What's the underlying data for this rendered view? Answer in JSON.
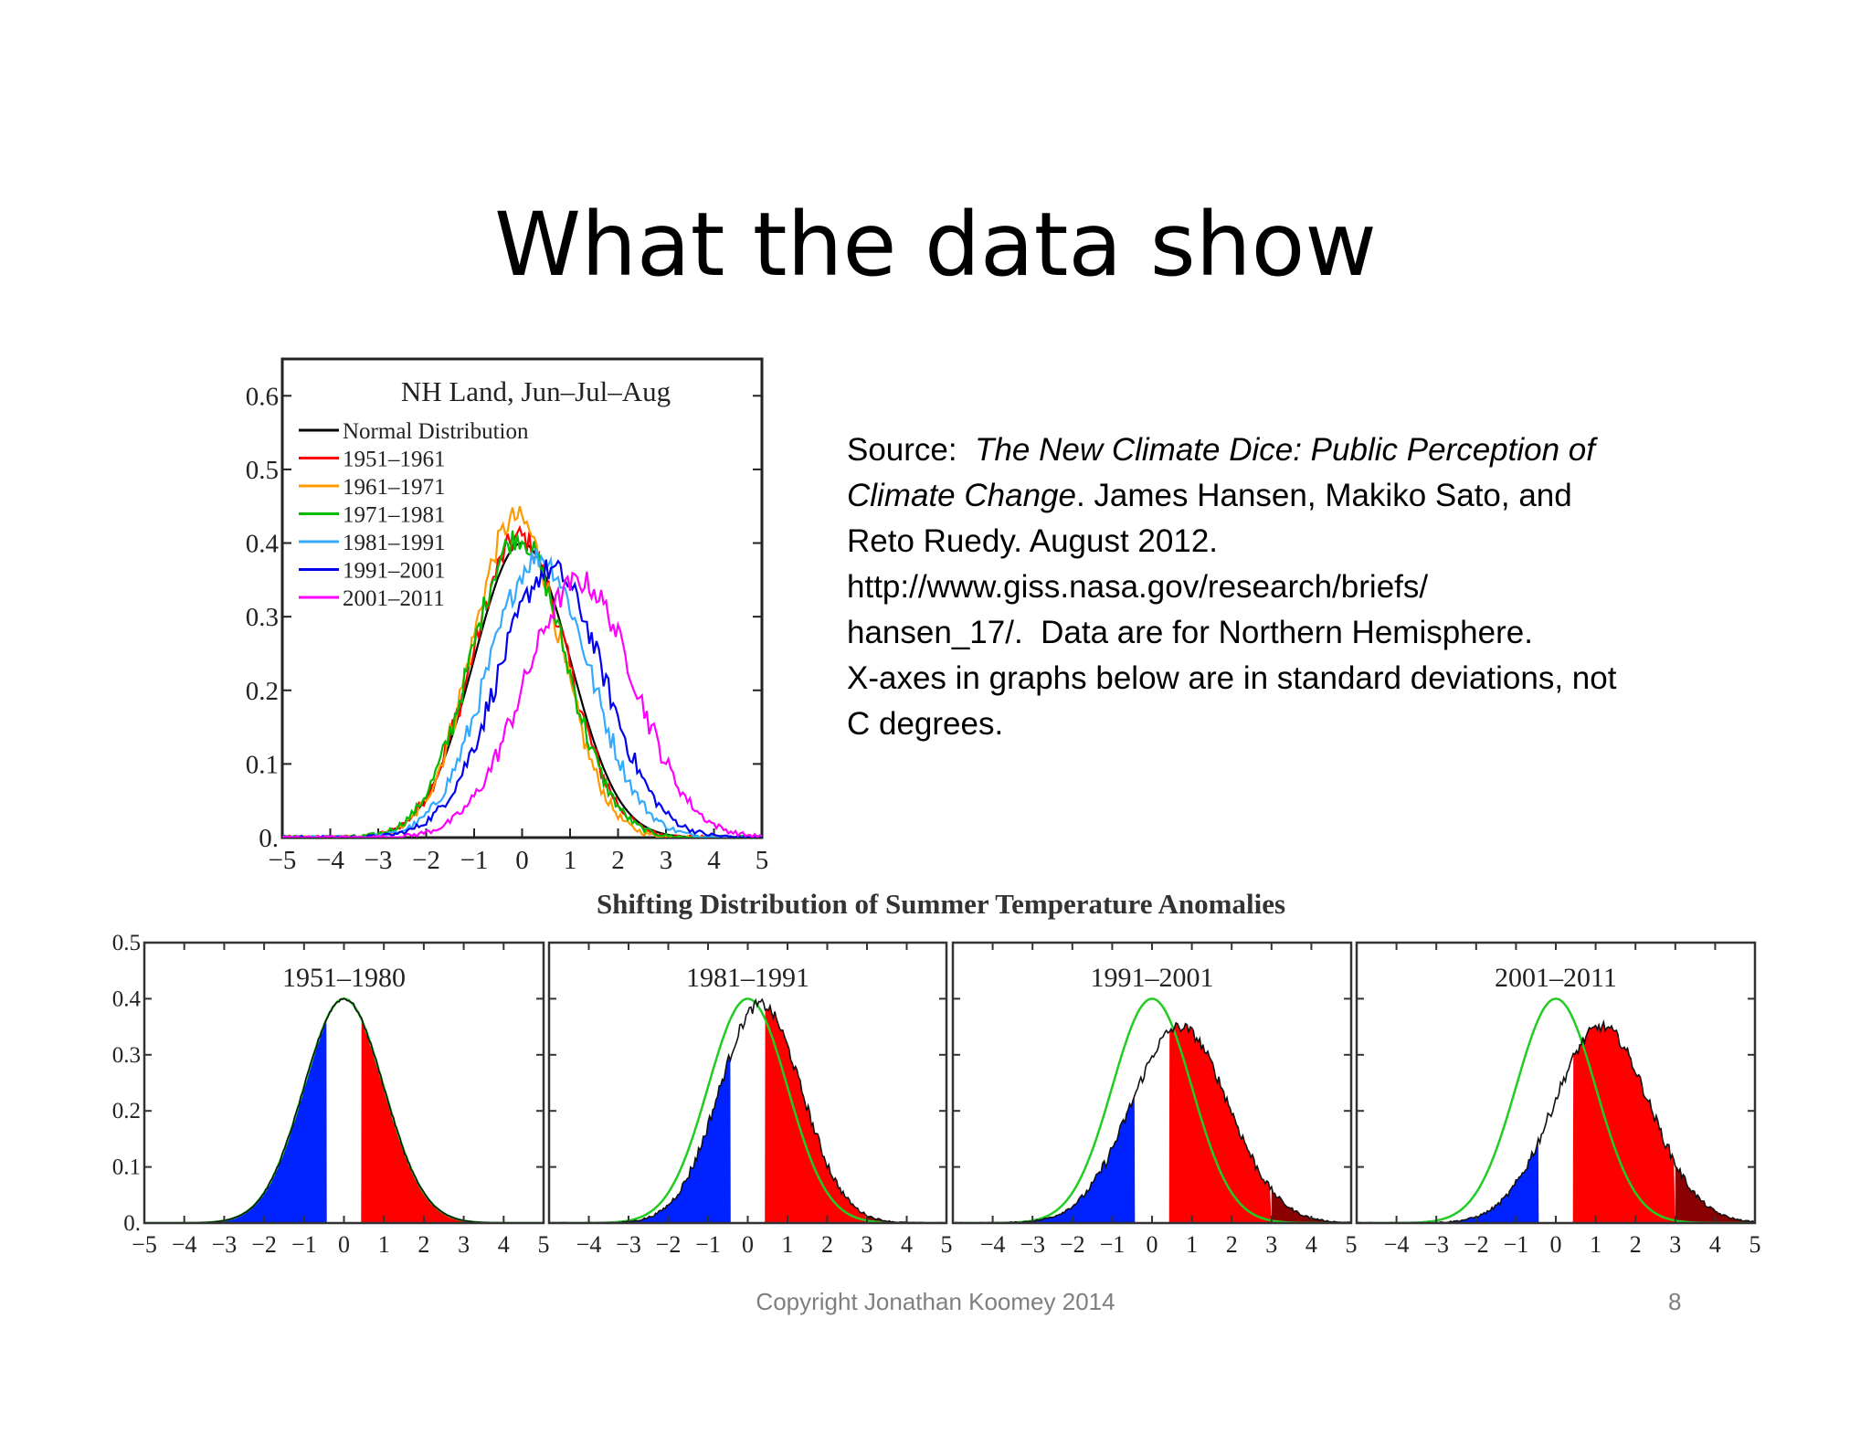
{
  "slide": {
    "title": "What the data show",
    "source_lines": [
      [
        "Source:  ",
        "The New Climate Dice: Public Perception of"
      ],
      [
        "",
        "Climate Change",
        ". James Hansen, Makiko Sato, and"
      ],
      [
        "Reto Ruedy. August 2012."
      ],
      [
        "http://www.giss.nasa.gov/research/briefs/"
      ],
      [
        "hansen_17/.  Data are for Northern Hemisphere."
      ],
      [
        "X-axes in graphs below are in standard deviations, not"
      ],
      [
        "C degrees."
      ]
    ],
    "footer": "Copyright Jonathan Koomey 2014",
    "page_number": "8"
  },
  "chart_data": [
    {
      "type": "line",
      "title": "NH Land, Jun–Jul–Aug",
      "xlim": [
        -5,
        5
      ],
      "ylim": [
        0,
        0.65
      ],
      "xticks": [
        "−5",
        "−4",
        "−3",
        "−2",
        "−1",
        "0",
        "1",
        "2",
        "3",
        "4",
        "5"
      ],
      "yticks": [
        "0.",
        "0.1",
        "0.2",
        "0.3",
        "0.4",
        "0.5",
        "0.6"
      ],
      "legend_position": "top-left",
      "series": [
        {
          "name": "Normal Distribution",
          "mean": 0.0,
          "sd": 1.0,
          "color": "#000000"
        },
        {
          "name": "1951–1961",
          "mean": -0.05,
          "sd": 0.98,
          "color": "#ff0000"
        },
        {
          "name": "1961–1971",
          "mean": -0.12,
          "sd": 0.92,
          "color": "#ff9900"
        },
        {
          "name": "1971–1981",
          "mean": -0.08,
          "sd": 0.98,
          "color": "#00bb00"
        },
        {
          "name": "1981–1991",
          "mean": 0.35,
          "sd": 1.05,
          "color": "#33aaff"
        },
        {
          "name": "1991–2001",
          "mean": 0.6,
          "sd": 1.1,
          "color": "#0000ee"
        },
        {
          "name": "2001–2011",
          "mean": 1.2,
          "sd": 1.15,
          "color": "#ff00ff"
        }
      ]
    },
    {
      "type": "area",
      "title": "Shifting Distribution of Summer Temperature Anomalies",
      "xlim": [
        -5,
        5
      ],
      "ylim": [
        0,
        0.5
      ],
      "yticks": [
        "0.",
        "0.1",
        "0.2",
        "0.3",
        "0.4",
        "0.5"
      ],
      "xticks_first": [
        "−5",
        "−4",
        "−3",
        "−2",
        "−1",
        "0",
        "1",
        "2",
        "3",
        "4",
        "5"
      ],
      "xticks_rest": [
        "−4",
        "−3",
        "−2",
        "−1",
        "0",
        "1",
        "2",
        "3",
        "4",
        "5"
      ],
      "shading": {
        "cold_below": -0.43,
        "hot_above": 0.43,
        "extreme_above": 3,
        "cold_color": "#0022ff",
        "hot_color": "#ff0000",
        "extreme_color": "#8b0000",
        "reference_color": "#22cc22"
      },
      "panels": [
        {
          "label": "1951–1980",
          "mean": 0.0,
          "sd": 1.0,
          "peak": 0.4
        },
        {
          "label": "1981–1991",
          "mean": 0.32,
          "sd": 1.04,
          "peak": 0.39
        },
        {
          "label": "1991–2001",
          "mean": 0.7,
          "sd": 1.22,
          "peak": 0.35
        },
        {
          "label": "2001–2011",
          "mean": 1.15,
          "sd": 1.2,
          "peak": 0.35
        }
      ]
    }
  ]
}
